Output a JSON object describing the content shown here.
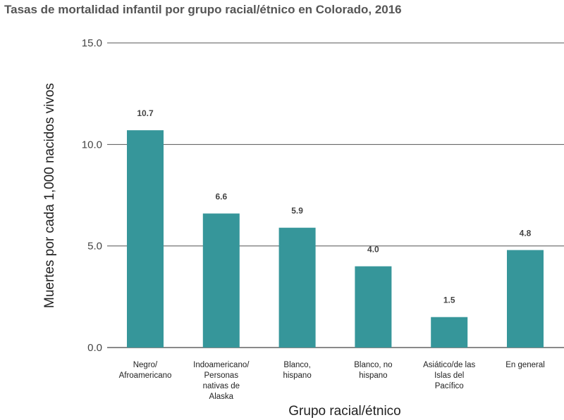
{
  "chart_data": {
    "type": "bar",
    "title": "Tasas de mortalidad infantil por grupo racial/étnico en Colorado, 2016",
    "xlabel": "Grupo racial/étnico",
    "ylabel": "Muertes por cada 1,000 nacidos vivos",
    "ylim": [
      0,
      15
    ],
    "yticks": [
      "0.0",
      "5.0",
      "10.0",
      "15.0"
    ],
    "grid": true,
    "categories": [
      [
        "Negro/",
        "Afroamericano"
      ],
      [
        "Indoamericano/",
        "Personas",
        "nativas de",
        "Alaska"
      ],
      [
        "Blanco,",
        "hispano"
      ],
      [
        "Blanco, no",
        "hispano"
      ],
      [
        "Asiático/de las",
        "Islas del",
        "Pacífico"
      ],
      [
        "En general"
      ]
    ],
    "values": [
      10.7,
      6.6,
      5.9,
      4.0,
      1.5,
      4.8
    ],
    "value_labels": [
      "10.7",
      "6.6",
      "5.9",
      "4.0",
      "1.5",
      "4.8"
    ],
    "bar_color": "#36969a"
  }
}
